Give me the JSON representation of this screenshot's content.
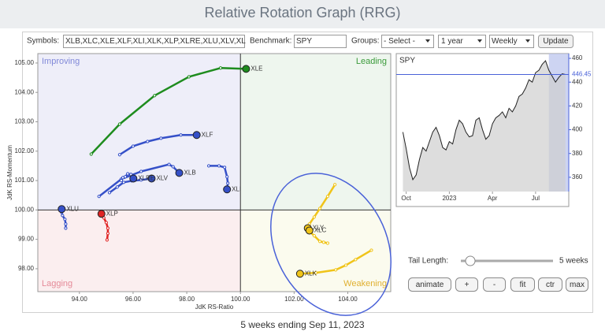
{
  "header": {
    "title": "Relative Rotation Graph (RRG)"
  },
  "controls": {
    "symbols_label": "Symbols:",
    "symbols": "XLB,XLC,XLE,XLF,XLI,XLK,XLP,XLRE,XLU,XLV,XL",
    "benchmark_label": "Benchmark:",
    "benchmark": "SPY",
    "groups_label": "Groups:",
    "groups": "- Select -",
    "period": "1 year",
    "interval": "Weekly",
    "update": "Update"
  },
  "chart_data": [
    {
      "type": "rrg",
      "x_label": "JdK RS-Ratio",
      "y_label": "JdK RS-Momentum",
      "xlim": [
        92.45,
        105.6
      ],
      "ylim": [
        97.22,
        105.32
      ],
      "xticks": [
        {
          "value": 94,
          "label": "94.00"
        },
        {
          "value": 96,
          "label": "96.00"
        },
        {
          "value": 98,
          "label": "98.00"
        },
        {
          "value": 100,
          "label": "100.00"
        },
        {
          "value": 102,
          "label": "102.00"
        },
        {
          "value": 104,
          "label": "104.00"
        }
      ],
      "yticks": [
        {
          "value": 98,
          "label": "98.00"
        },
        {
          "value": 99,
          "label": "99.00"
        },
        {
          "value": 100,
          "label": "100.00"
        },
        {
          "value": 101,
          "label": "101.00"
        },
        {
          "value": 102,
          "label": "102.00"
        },
        {
          "value": 103,
          "label": "103.00"
        },
        {
          "value": 104,
          "label": "104.00"
        },
        {
          "value": 105,
          "label": "105.00"
        }
      ],
      "center": {
        "x": 100,
        "y": 100
      },
      "quadrants": {
        "improving": {
          "label": "Improving",
          "color": "#eeeef9",
          "text_color": "#8088d8"
        },
        "leading": {
          "label": "Leading",
          "color": "#eef6ee",
          "text_color": "#3a9a3a"
        },
        "lagging": {
          "label": "Lagging",
          "color": "#fbeeef",
          "text_color": "#e58a98"
        },
        "weakening": {
          "label": "Weakening",
          "color": "#fbfbee",
          "text_color": "#e0b030"
        }
      },
      "series": [
        {
          "name": "XLE",
          "color": "#1e8c1e",
          "x": [
            94.44,
            95.5,
            96.8,
            98.08,
            99.26,
            100.21
          ],
          "y": [
            101.9,
            102.92,
            103.89,
            104.53,
            104.83,
            104.8
          ]
        },
        {
          "name": "XLF",
          "color": "#3550c8",
          "x": [
            95.5,
            96.0,
            96.54,
            97.04,
            97.78,
            98.37
          ],
          "y": [
            101.88,
            102.17,
            102.33,
            102.44,
            102.55,
            102.55
          ]
        },
        {
          "name": "XLB",
          "color": "#3550c8",
          "x": [
            94.73,
            95.56,
            96.3,
            97.34,
            97.49,
            97.72
          ],
          "y": [
            100.46,
            101.05,
            101.31,
            101.55,
            101.47,
            101.26
          ]
        },
        {
          "name": "XLV",
          "color": "#3550c8",
          "x": [
            95.12,
            95.41,
            95.65,
            95.95,
            96.3,
            96.69
          ],
          "y": [
            100.59,
            100.78,
            100.94,
            100.99,
            101.02,
            101.07
          ]
        },
        {
          "name": "XLRE",
          "color": "#3550c8",
          "x": [
            95.56,
            95.62,
            95.71,
            95.8,
            95.92,
            96.01
          ],
          "y": [
            101.0,
            101.1,
            101.13,
            101.23,
            101.21,
            101.07
          ]
        },
        {
          "name": "XLI",
          "color": "#3550c8",
          "x": [
            98.82,
            99.2,
            99.41,
            99.5,
            99.53,
            99.5
          ],
          "y": [
            101.5,
            101.5,
            101.45,
            101.13,
            100.91,
            100.7
          ]
        },
        {
          "name": "XLU",
          "color": "#3550c8",
          "x": [
            93.49,
            93.49,
            93.46,
            93.37,
            93.34,
            93.34
          ],
          "y": [
            99.38,
            99.52,
            99.68,
            99.81,
            99.92,
            100.03
          ]
        },
        {
          "name": "XLP",
          "color": "#e02424",
          "x": [
            95.03,
            95.06,
            95.06,
            95.0,
            94.91,
            94.82
          ],
          "y": [
            98.98,
            99.2,
            99.38,
            99.57,
            99.73,
            99.87
          ]
        },
        {
          "name": "XLY",
          "color": "#f0c419",
          "x": [
            103.52,
            103.25,
            102.96,
            102.75,
            102.57,
            102.51
          ],
          "y": [
            100.86,
            100.46,
            100.05,
            99.76,
            99.52,
            99.38
          ]
        },
        {
          "name": "XLC",
          "color": "#f0c419",
          "x": [
            103.25,
            103.1,
            102.96,
            102.75,
            102.6,
            102.57
          ],
          "y": [
            98.87,
            98.9,
            98.93,
            99.12,
            99.25,
            99.3
          ]
        },
        {
          "name": "XLK",
          "color": "#f0c419",
          "x": [
            104.88,
            104.29,
            103.93,
            103.55,
            102.81,
            102.22
          ],
          "y": [
            98.63,
            98.31,
            98.12,
            97.96,
            97.86,
            97.83
          ]
        }
      ]
    },
    {
      "type": "line",
      "title": "SPY",
      "color": "#222222",
      "xlim": [
        -2,
        50
      ],
      "ylim": [
        348,
        464
      ],
      "xticks": [
        {
          "value": 1,
          "label": "Oct"
        },
        {
          "value": 14,
          "label": "2023"
        },
        {
          "value": 27,
          "label": "Apr"
        },
        {
          "value": 40,
          "label": "Jul"
        }
      ],
      "yticks": [
        360,
        380,
        400,
        420,
        440,
        460
      ],
      "values": [
        398,
        384,
        368,
        358,
        362,
        375,
        385,
        382,
        390,
        398,
        402,
        395,
        385,
        383,
        390,
        388,
        400,
        408,
        405,
        398,
        394,
        395,
        408,
        410,
        400,
        392,
        395,
        405,
        410,
        412,
        415,
        410,
        418,
        415,
        420,
        428,
        430,
        435,
        442,
        440,
        448,
        450,
        455,
        458,
        450,
        445,
        440,
        444,
        447,
        446.45
      ]
    }
  ],
  "tail": {
    "label": "Tail Length:",
    "length": {
      "value": 5,
      "label": "5 weeks"
    }
  },
  "buttons": [
    "animate",
    "+",
    "-",
    "fit",
    "ctr",
    "max"
  ],
  "footer": "5 weeks ending Sep 11, 2023"
}
